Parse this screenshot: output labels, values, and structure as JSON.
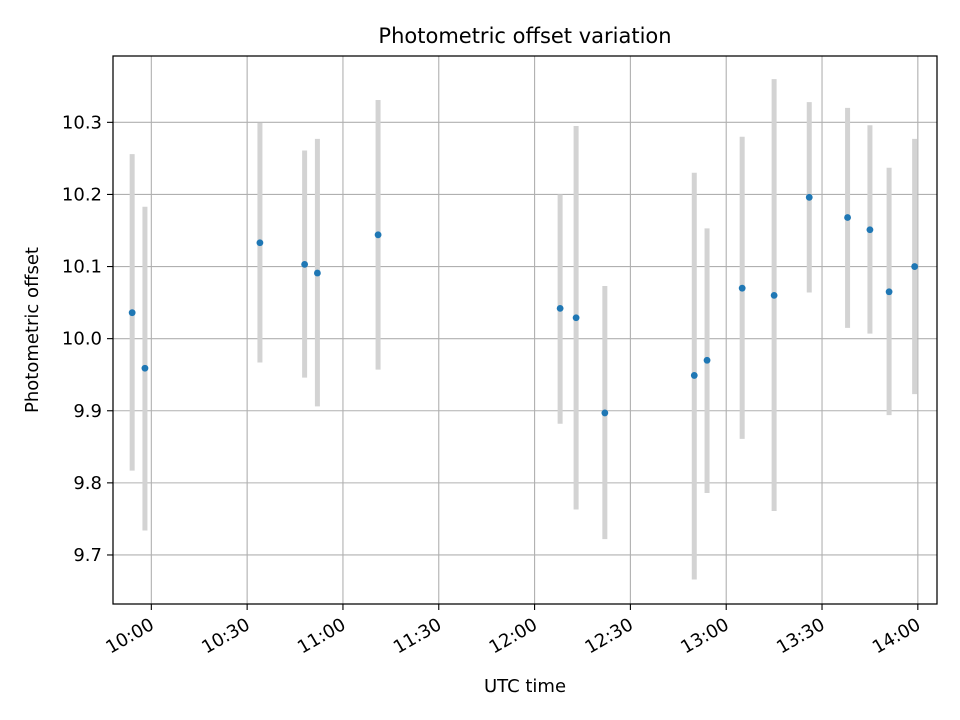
{
  "chart_data": {
    "type": "scatter",
    "title": "Photometric offset variation",
    "xlabel": "UTC time",
    "ylabel": "Photometric offset",
    "x_axis_type": "time",
    "xlim": [
      "09:48",
      "14:06"
    ],
    "ylim": [
      9.632,
      10.392
    ],
    "xticks": [
      "10:00",
      "10:30",
      "11:00",
      "11:30",
      "12:00",
      "12:30",
      "13:00",
      "13:30",
      "14:00"
    ],
    "yticks": [
      9.7,
      9.8,
      9.9,
      10.0,
      10.1,
      10.2,
      10.3
    ],
    "ytick_labels": [
      "9.7",
      "9.8",
      "9.9",
      "10.0",
      "10.1",
      "10.2",
      "10.3"
    ],
    "grid": true,
    "legend": "none",
    "colors": {
      "points": "#1f77b4",
      "errorbars": "#d3d3d3",
      "grid": "#b0b0b0"
    },
    "points": [
      {
        "x": "09:54",
        "y": 10.036,
        "ylow": 9.817,
        "yhigh": 10.256
      },
      {
        "x": "09:58",
        "y": 9.959,
        "ylow": 9.734,
        "yhigh": 10.183
      },
      {
        "x": "10:34",
        "y": 10.133,
        "ylow": 9.967,
        "yhigh": 10.299
      },
      {
        "x": "10:48",
        "y": 10.103,
        "ylow": 9.946,
        "yhigh": 10.261
      },
      {
        "x": "10:52",
        "y": 10.091,
        "ylow": 9.906,
        "yhigh": 10.277
      },
      {
        "x": "11:11",
        "y": 10.144,
        "ylow": 9.957,
        "yhigh": 10.331
      },
      {
        "x": "12:08",
        "y": 10.042,
        "ylow": 9.882,
        "yhigh": 10.2
      },
      {
        "x": "12:13",
        "y": 10.029,
        "ylow": 9.763,
        "yhigh": 10.295
      },
      {
        "x": "12:22",
        "y": 9.897,
        "ylow": 9.722,
        "yhigh": 10.073
      },
      {
        "x": "12:50",
        "y": 9.949,
        "ylow": 9.666,
        "yhigh": 10.23
      },
      {
        "x": "12:54",
        "y": 9.97,
        "ylow": 9.786,
        "yhigh": 10.153
      },
      {
        "x": "13:05",
        "y": 10.07,
        "ylow": 9.861,
        "yhigh": 10.28
      },
      {
        "x": "13:15",
        "y": 10.06,
        "ylow": 9.761,
        "yhigh": 10.36
      },
      {
        "x": "13:26",
        "y": 10.196,
        "ylow": 10.064,
        "yhigh": 10.328
      },
      {
        "x": "13:38",
        "y": 10.168,
        "ylow": 10.015,
        "yhigh": 10.32
      },
      {
        "x": "13:45",
        "y": 10.151,
        "ylow": 10.007,
        "yhigh": 10.296
      },
      {
        "x": "13:51",
        "y": 10.065,
        "ylow": 9.894,
        "yhigh": 10.237
      },
      {
        "x": "13:59",
        "y": 10.1,
        "ylow": 9.923,
        "yhigh": 10.277
      }
    ]
  }
}
